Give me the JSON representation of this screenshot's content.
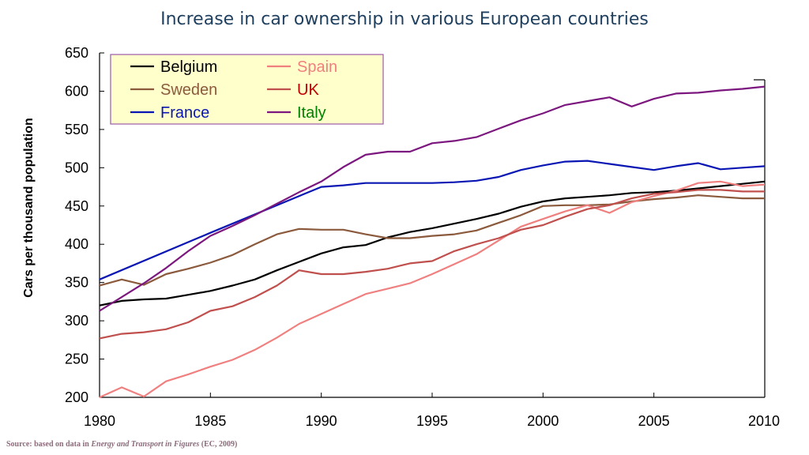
{
  "chart_data": {
    "type": "line",
    "title": "Increase in car ownership in various European countries",
    "xlabel": "",
    "ylabel": "Cars per thousand population",
    "xlim": [
      1980,
      2010
    ],
    "ylim": [
      200,
      650
    ],
    "xticks": [
      1980,
      1985,
      1990,
      1995,
      2000,
      2005,
      2010
    ],
    "yticks": [
      200,
      250,
      300,
      350,
      400,
      450,
      500,
      550,
      600,
      650
    ],
    "x": [
      1980,
      1981,
      1982,
      1983,
      1984,
      1985,
      1986,
      1987,
      1988,
      1989,
      1990,
      1991,
      1992,
      1993,
      1994,
      1995,
      1996,
      1997,
      1998,
      1999,
      2000,
      2001,
      2002,
      2003,
      2004,
      2005,
      2006,
      2007,
      2008,
      2009,
      2010
    ],
    "series": [
      {
        "name": "Belgium",
        "color": "#000000",
        "values": [
          320,
          326,
          328,
          329,
          334,
          339,
          346,
          354,
          366,
          377,
          388,
          396,
          399,
          409,
          416,
          421,
          427,
          433,
          440,
          449,
          456,
          460,
          462,
          464,
          467,
          468,
          470,
          473,
          476,
          479,
          482
        ]
      },
      {
        "name": "Sweden",
        "color": "#8b5a3c",
        "values": [
          346,
          354,
          347,
          361,
          368,
          376,
          386,
          400,
          413,
          420,
          419,
          419,
          413,
          408,
          408,
          411,
          413,
          418,
          428,
          438,
          450,
          451,
          451,
          452,
          456,
          459,
          461,
          464,
          462,
          460,
          460
        ]
      },
      {
        "name": "France",
        "color": "#0a16b3",
        "values": [
          354,
          null,
          null,
          null,
          null,
          415,
          null,
          null,
          null,
          null,
          475,
          477,
          480,
          480,
          480,
          480,
          481,
          483,
          488,
          497,
          503,
          508,
          509,
          505,
          501,
          497,
          502,
          506,
          498,
          500,
          502
        ]
      },
      {
        "name": "Spain",
        "color": "#f08080",
        "values": [
          200,
          213,
          201,
          221,
          230,
          240,
          249,
          262,
          278,
          296,
          309,
          322,
          335,
          342,
          349,
          361,
          374,
          387,
          405,
          423,
          433,
          443,
          451,
          441,
          455,
          463,
          470,
          480,
          482,
          476,
          478
        ]
      },
      {
        "name": "UK",
        "color": "#c0504d",
        "values": [
          277,
          283,
          285,
          289,
          298,
          313,
          319,
          331,
          346,
          366,
          361,
          361,
          364,
          368,
          375,
          378,
          391,
          400,
          408,
          419,
          425,
          436,
          446,
          451,
          460,
          466,
          468,
          471,
          471,
          469,
          469
        ]
      },
      {
        "name": "Italy",
        "color": "#7b177e",
        "values": [
          313,
          331,
          349,
          369,
          391,
          411,
          424,
          438,
          453,
          468,
          482,
          501,
          517,
          521,
          521,
          532,
          535,
          540,
          551,
          562,
          571,
          582,
          587,
          592,
          580,
          590,
          597,
          598,
          601,
          603,
          606
        ]
      }
    ],
    "legend_position": "top-left"
  },
  "legend": {
    "labels": [
      "Belgium",
      "Spain",
      "Sweden",
      "UK",
      "France",
      "Italy"
    ],
    "text_colors": [
      "#000000",
      "#f08080",
      "#8b5a3c",
      "#c00000",
      "#0a16b3",
      "#008000"
    ]
  },
  "source": {
    "prefix": "Source: based on data in",
    "italic": "Energy and Transport in Figures",
    "suffix": "(EC, 2009)"
  }
}
